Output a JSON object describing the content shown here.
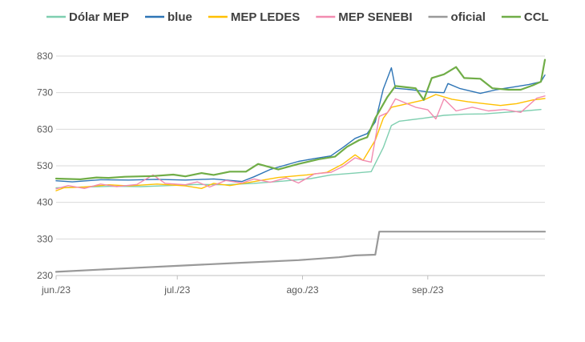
{
  "chart_data": {
    "type": "line",
    "title": "",
    "xlabel": "",
    "ylabel": "",
    "ylim": [
      230,
      830
    ],
    "yticks": [
      230,
      330,
      430,
      530,
      630,
      730,
      830
    ],
    "xlim": [
      "2023-06-01",
      "2023-09-30"
    ],
    "xticks": [
      {
        "date": "2023-06-01",
        "label": "jun./23"
      },
      {
        "date": "2023-07-01",
        "label": "jul./23"
      },
      {
        "date": "2023-08-01",
        "label": "ago./23"
      },
      {
        "date": "2023-09-01",
        "label": "sep./23"
      }
    ],
    "grid": "horizontal",
    "legend_position": "top",
    "series": [
      {
        "name": "Dólar MEP",
        "color": "#7fcfb0",
        "width": 1.4,
        "points": [
          [
            "2023-06-01",
            470
          ],
          [
            "2023-06-08",
            472
          ],
          [
            "2023-06-15",
            474
          ],
          [
            "2023-06-22",
            473
          ],
          [
            "2023-06-29",
            476
          ],
          [
            "2023-07-06",
            479
          ],
          [
            "2023-07-13",
            478
          ],
          [
            "2023-07-20",
            482
          ],
          [
            "2023-07-27",
            488
          ],
          [
            "2023-08-03",
            495
          ],
          [
            "2023-08-08",
            505
          ],
          [
            "2023-08-14",
            510
          ],
          [
            "2023-08-18",
            514
          ],
          [
            "2023-08-21",
            580
          ],
          [
            "2023-08-23",
            640
          ],
          [
            "2023-08-25",
            652
          ],
          [
            "2023-08-31",
            660
          ],
          [
            "2023-09-05",
            668
          ],
          [
            "2023-09-10",
            671
          ],
          [
            "2023-09-15",
            672
          ],
          [
            "2023-09-20",
            676
          ],
          [
            "2023-09-25",
            680
          ],
          [
            "2023-09-29",
            684
          ]
        ]
      },
      {
        "name": "blue",
        "color": "#2e75b6",
        "width": 1.4,
        "points": [
          [
            "2023-06-01",
            489
          ],
          [
            "2023-06-05",
            486
          ],
          [
            "2023-06-12",
            492
          ],
          [
            "2023-06-19",
            491
          ],
          [
            "2023-06-26",
            493
          ],
          [
            "2023-07-03",
            491
          ],
          [
            "2023-07-10",
            494
          ],
          [
            "2023-07-17",
            487
          ],
          [
            "2023-07-20",
            500
          ],
          [
            "2023-07-24",
            520
          ],
          [
            "2023-07-31",
            542
          ],
          [
            "2023-08-04",
            550
          ],
          [
            "2023-08-08",
            557
          ],
          [
            "2023-08-11",
            580
          ],
          [
            "2023-08-14",
            605
          ],
          [
            "2023-08-17",
            618
          ],
          [
            "2023-08-19",
            650
          ],
          [
            "2023-08-21",
            740
          ],
          [
            "2023-08-23",
            798
          ],
          [
            "2023-08-24",
            742
          ],
          [
            "2023-08-28",
            738
          ],
          [
            "2023-09-01",
            732
          ],
          [
            "2023-09-05",
            730
          ],
          [
            "2023-09-06",
            755
          ],
          [
            "2023-09-09",
            741
          ],
          [
            "2023-09-14",
            728
          ],
          [
            "2023-09-18",
            738
          ],
          [
            "2023-09-22",
            745
          ],
          [
            "2023-09-26",
            752
          ],
          [
            "2023-09-29",
            760
          ],
          [
            "2023-09-30",
            778
          ]
        ]
      },
      {
        "name": "MEP LEDES",
        "color": "#ffc000",
        "width": 1.4,
        "points": [
          [
            "2023-06-01",
            462
          ],
          [
            "2023-06-03",
            470
          ],
          [
            "2023-06-08",
            472
          ],
          [
            "2023-06-14",
            478
          ],
          [
            "2023-06-19",
            475
          ],
          [
            "2023-06-26",
            480
          ],
          [
            "2023-07-03",
            475
          ],
          [
            "2023-07-07",
            468
          ],
          [
            "2023-07-10",
            482
          ],
          [
            "2023-07-14",
            476
          ],
          [
            "2023-07-19",
            485
          ],
          [
            "2023-07-26",
            498
          ],
          [
            "2023-08-02",
            505
          ],
          [
            "2023-08-07",
            512
          ],
          [
            "2023-08-11",
            535
          ],
          [
            "2023-08-14",
            560
          ],
          [
            "2023-08-16",
            545
          ],
          [
            "2023-08-19",
            600
          ],
          [
            "2023-08-21",
            660
          ],
          [
            "2023-08-23",
            690
          ],
          [
            "2023-08-27",
            700
          ],
          [
            "2023-08-31",
            710
          ],
          [
            "2023-09-03",
            725
          ],
          [
            "2023-09-07",
            712
          ],
          [
            "2023-09-11",
            705
          ],
          [
            "2023-09-15",
            700
          ],
          [
            "2023-09-19",
            695
          ],
          [
            "2023-09-23",
            700
          ],
          [
            "2023-09-27",
            710
          ],
          [
            "2023-09-30",
            714
          ]
        ]
      },
      {
        "name": "MEP SENEBI",
        "color": "#f28bb0",
        "width": 1.4,
        "points": [
          [
            "2023-06-01",
            467
          ],
          [
            "2023-06-04",
            476
          ],
          [
            "2023-06-08",
            468
          ],
          [
            "2023-06-12",
            480
          ],
          [
            "2023-06-16",
            473
          ],
          [
            "2023-06-21",
            479
          ],
          [
            "2023-06-25",
            505
          ],
          [
            "2023-06-28",
            482
          ],
          [
            "2023-07-03",
            478
          ],
          [
            "2023-07-06",
            486
          ],
          [
            "2023-07-09",
            472
          ],
          [
            "2023-07-13",
            490
          ],
          [
            "2023-07-17",
            483
          ],
          [
            "2023-07-20",
            494
          ],
          [
            "2023-07-24",
            485
          ],
          [
            "2023-07-28",
            497
          ],
          [
            "2023-07-31",
            483
          ],
          [
            "2023-08-04",
            508
          ],
          [
            "2023-08-08",
            512
          ],
          [
            "2023-08-11",
            528
          ],
          [
            "2023-08-14",
            552
          ],
          [
            "2023-08-16",
            545
          ],
          [
            "2023-08-18",
            540
          ],
          [
            "2023-08-20",
            665
          ],
          [
            "2023-08-22",
            675
          ],
          [
            "2023-08-24",
            713
          ],
          [
            "2023-08-29",
            690
          ],
          [
            "2023-09-01",
            683
          ],
          [
            "2023-09-03",
            658
          ],
          [
            "2023-09-05",
            713
          ],
          [
            "2023-09-08",
            680
          ],
          [
            "2023-09-12",
            690
          ],
          [
            "2023-09-16",
            680
          ],
          [
            "2023-09-20",
            684
          ],
          [
            "2023-09-24",
            676
          ],
          [
            "2023-09-28",
            715
          ],
          [
            "2023-09-30",
            721
          ]
        ]
      },
      {
        "name": "oficial",
        "color": "#999999",
        "width": 2.2,
        "points": [
          [
            "2023-06-01",
            240
          ],
          [
            "2023-06-15",
            248
          ],
          [
            "2023-06-30",
            256
          ],
          [
            "2023-07-15",
            264
          ],
          [
            "2023-07-31",
            272
          ],
          [
            "2023-08-10",
            280
          ],
          [
            "2023-08-14",
            285
          ],
          [
            "2023-08-19",
            287
          ],
          [
            "2023-08-20",
            350
          ],
          [
            "2023-08-21",
            350
          ],
          [
            "2023-09-30",
            350
          ]
        ]
      },
      {
        "name": "CCL",
        "color": "#70ad47",
        "width": 2.2,
        "points": [
          [
            "2023-06-01",
            495
          ],
          [
            "2023-06-07",
            493
          ],
          [
            "2023-06-11",
            498
          ],
          [
            "2023-06-14",
            497
          ],
          [
            "2023-06-18",
            500
          ],
          [
            "2023-06-25",
            502
          ],
          [
            "2023-06-30",
            506
          ],
          [
            "2023-07-03",
            501
          ],
          [
            "2023-07-07",
            510
          ],
          [
            "2023-07-10",
            505
          ],
          [
            "2023-07-14",
            514
          ],
          [
            "2023-07-18",
            514
          ],
          [
            "2023-07-21",
            535
          ],
          [
            "2023-07-26",
            520
          ],
          [
            "2023-07-31",
            535
          ],
          [
            "2023-08-05",
            548
          ],
          [
            "2023-08-09",
            555
          ],
          [
            "2023-08-12",
            582
          ],
          [
            "2023-08-15",
            600
          ],
          [
            "2023-08-17",
            608
          ],
          [
            "2023-08-19",
            660
          ],
          [
            "2023-08-22",
            718
          ],
          [
            "2023-08-24",
            748
          ],
          [
            "2023-08-29",
            742
          ],
          [
            "2023-08-31",
            710
          ],
          [
            "2023-09-02",
            770
          ],
          [
            "2023-09-05",
            780
          ],
          [
            "2023-09-08",
            800
          ],
          [
            "2023-09-10",
            770
          ],
          [
            "2023-09-14",
            768
          ],
          [
            "2023-09-17",
            742
          ],
          [
            "2023-09-21",
            738
          ],
          [
            "2023-09-24",
            738
          ],
          [
            "2023-09-27",
            750
          ],
          [
            "2023-09-29",
            760
          ],
          [
            "2023-09-30",
            820
          ]
        ]
      }
    ]
  }
}
